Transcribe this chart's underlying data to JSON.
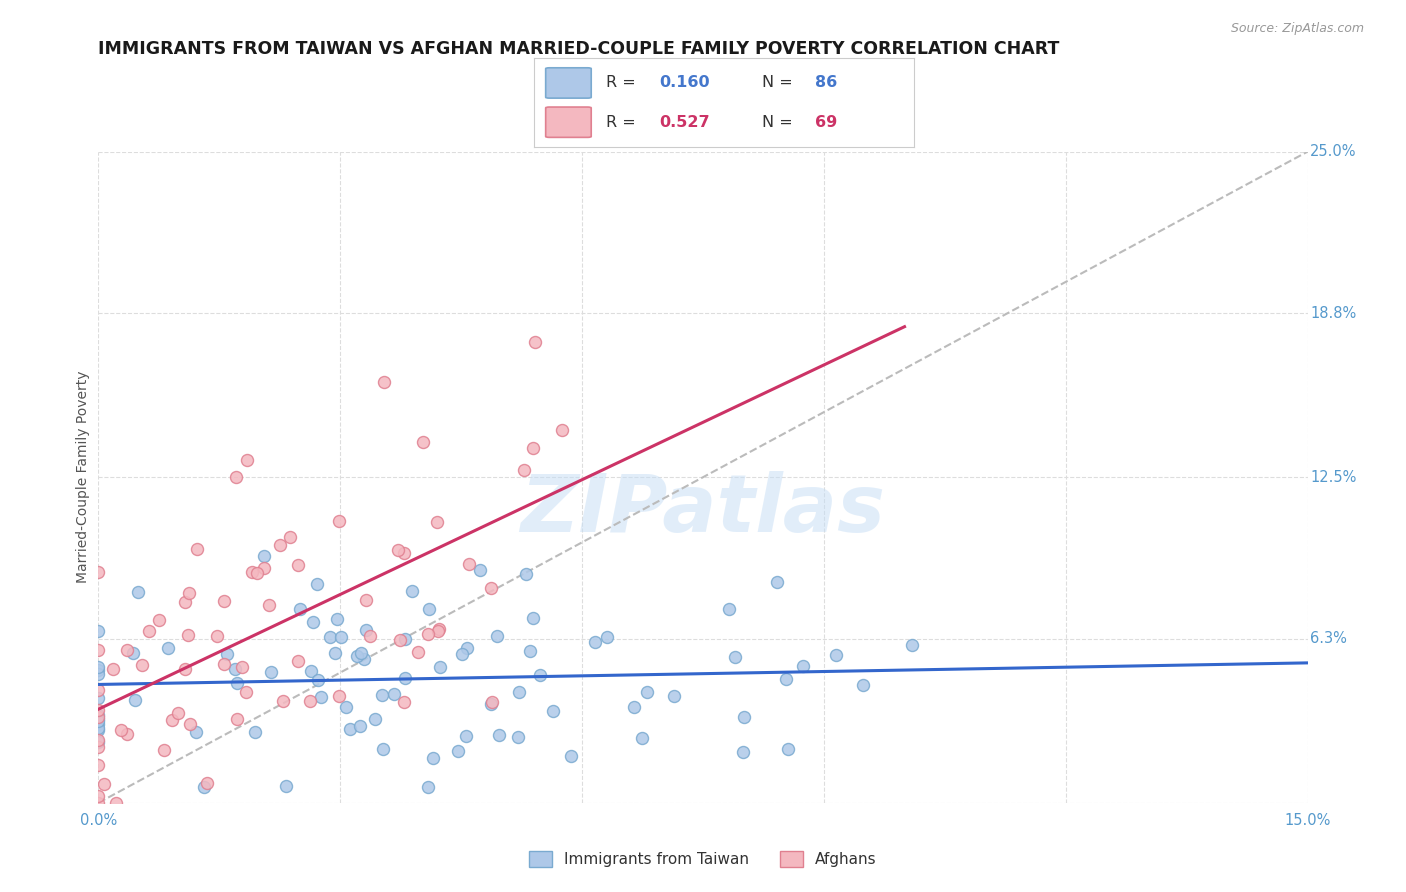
{
  "title": "IMMIGRANTS FROM TAIWAN VS AFGHAN MARRIED-COUPLE FAMILY POVERTY CORRELATION CHART",
  "source": "Source: ZipAtlas.com",
  "ylabel": "Married-Couple Family Poverty",
  "xlim": [
    0.0,
    0.15
  ],
  "ylim": [
    0.0,
    0.25
  ],
  "taiwan_color_fill": "#aec8e8",
  "taiwan_color_edge": "#7aaad0",
  "afghan_color_fill": "#f4b8c0",
  "afghan_color_edge": "#e08090",
  "taiwan_line_color": "#3366cc",
  "afghan_line_color": "#cc3366",
  "diag_line_color": "#bbbbbb",
  "taiwan_R": 0.16,
  "taiwan_N": 86,
  "afghan_R": 0.527,
  "afghan_N": 69,
  "watermark": "ZIPatlas",
  "background_color": "#ffffff",
  "grid_color": "#dddddd",
  "tick_color": "#5599cc",
  "legend_R_color": "#4477cc",
  "legend_N_color": "#4477cc",
  "legend_afghan_R_color": "#cc3366",
  "legend_afghan_N_color": "#cc3366",
  "ytick_vals": [
    0.063,
    0.125,
    0.188,
    0.25
  ],
  "ytick_labels": [
    "6.3%",
    "12.5%",
    "18.8%",
    "25.0%"
  ],
  "xtick_vals": [
    0.0,
    0.03,
    0.06,
    0.09,
    0.12,
    0.15
  ],
  "xtick_labels": [
    "0.0%",
    "",
    "",
    "",
    "",
    "15.0%"
  ]
}
